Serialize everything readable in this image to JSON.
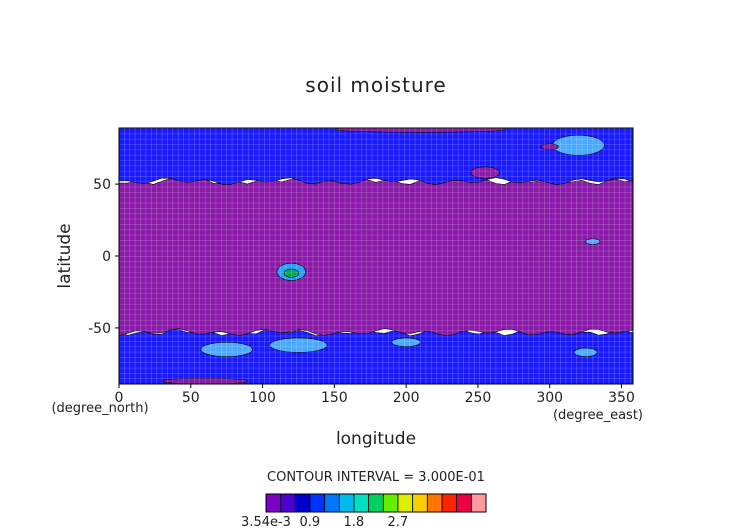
{
  "chart_data": {
    "type": "heatmap",
    "title": "soil moisture",
    "xlabel": "longitude",
    "ylabel": "latitude",
    "x_unit": "(degree_east)",
    "y_unit": "(degree_north)",
    "xlim": [
      0,
      358
    ],
    "ylim": [
      -89,
      89
    ],
    "x_ticks": [
      0,
      50,
      100,
      150,
      200,
      250,
      300,
      350
    ],
    "y_ticks": [
      -50,
      0,
      50
    ],
    "grid": true,
    "contour_interval_text": "CONTOUR INTERVAL = 3.000E-01",
    "colorbar": {
      "min": 0.00354,
      "interval": 0.3,
      "tick_labels": [
        "3.54e-3",
        "0.9",
        "1.8",
        "2.7"
      ],
      "tick_values": [
        0.00354,
        0.9,
        1.8,
        2.7
      ],
      "colors": [
        "#7a00c8",
        "#4b00d0",
        "#0000cc",
        "#0033ff",
        "#0077ff",
        "#00bbee",
        "#00e0c0",
        "#00d060",
        "#66ee00",
        "#ddee00",
        "#ffcc00",
        "#ff7700",
        "#ff2200",
        "#ee0044",
        "#ff9aa0"
      ]
    },
    "bands": [
      {
        "lat_from": -89,
        "lat_to": -53,
        "level": 0.9,
        "color": "#1a1aff"
      },
      {
        "lat_from": -53,
        "lat_to": 52,
        "level": 0.3,
        "color": "#8a1aa8"
      },
      {
        "lat_from": 52,
        "lat_to": 89,
        "level": 0.9,
        "color": "#1a1aff"
      }
    ],
    "patches": [
      {
        "lon": 120,
        "lat": -11,
        "rx": 10,
        "ry": 6,
        "level": 1.5,
        "color": "#22a0ff"
      },
      {
        "lon": 120,
        "lat": -12,
        "rx": 5,
        "ry": 3,
        "level": 2.1,
        "color": "#00aa55"
      },
      {
        "lon": 75,
        "lat": -65,
        "rx": 18,
        "ry": 5,
        "level": 1.2,
        "color": "#4aa8ff"
      },
      {
        "lon": 125,
        "lat": -62,
        "rx": 20,
        "ry": 5,
        "level": 1.2,
        "color": "#4aa8ff"
      },
      {
        "lon": 200,
        "lat": -60,
        "rx": 10,
        "ry": 3,
        "level": 1.2,
        "color": "#4aa8ff"
      },
      {
        "lon": 325,
        "lat": -67,
        "rx": 8,
        "ry": 3,
        "level": 1.2,
        "color": "#4aa8ff"
      },
      {
        "lon": 320,
        "lat": 77,
        "rx": 18,
        "ry": 7,
        "level": 1.2,
        "color": "#4aa8ff"
      },
      {
        "lon": 255,
        "lat": 58,
        "rx": 10,
        "ry": 4,
        "level": 0.3,
        "color": "#8a1aa8"
      },
      {
        "lon": 300,
        "lat": 76,
        "rx": 6,
        "ry": 2,
        "level": 0.3,
        "color": "#8a1aa8"
      },
      {
        "lon": 60,
        "lat": -87,
        "rx": 30,
        "ry": 2,
        "level": 0.3,
        "color": "#8a1aa8"
      },
      {
        "lon": 210,
        "lat": 88,
        "rx": 60,
        "ry": 2,
        "level": 0.3,
        "color": "#8a1aa8"
      },
      {
        "lon": 330,
        "lat": 10,
        "rx": 5,
        "ry": 2,
        "level": 1.2,
        "color": "#4aa8ff"
      }
    ]
  }
}
